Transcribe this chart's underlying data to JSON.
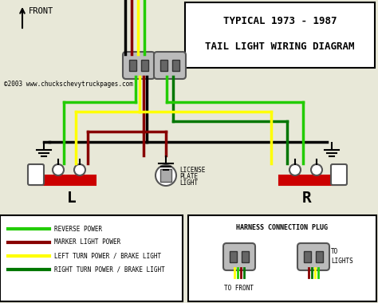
{
  "title_line1": "TYPICAL 1973 - 1987",
  "title_line2": "TAIL LIGHT WIRING DIAGRAM",
  "copyright": "©2003 www.chuckschevytruckpages.com",
  "front_label": "FRONT",
  "L_label": "L",
  "R_label": "R",
  "bg_color": "#e8e8d8",
  "black": "#000000",
  "green_bright": "#22cc00",
  "dark_red": "#880000",
  "yellow": "#ffff00",
  "green_dark": "#007700",
  "red_bar": "#cc0000",
  "plug_face": "#bbbbbb",
  "plug_edge": "#555555",
  "plug_pin": "#666666",
  "legend_items": [
    {
      "color": "#22cc00",
      "label": "REVERSE POWER"
    },
    {
      "color": "#880000",
      "label": "MARKER LIGHT POWER"
    },
    {
      "color": "#ffff00",
      "label": "LEFT TURN POWER / BRAKE LIGHT"
    },
    {
      "color": "#007700",
      "label": "RIGHT TURN POWER / BRAKE LIGHT"
    }
  ],
  "harness_title": "HARNESS CONNECTION PLUG",
  "harness_left_label": "TO FRONT",
  "harness_right_label": "TO\nLIGHTS"
}
